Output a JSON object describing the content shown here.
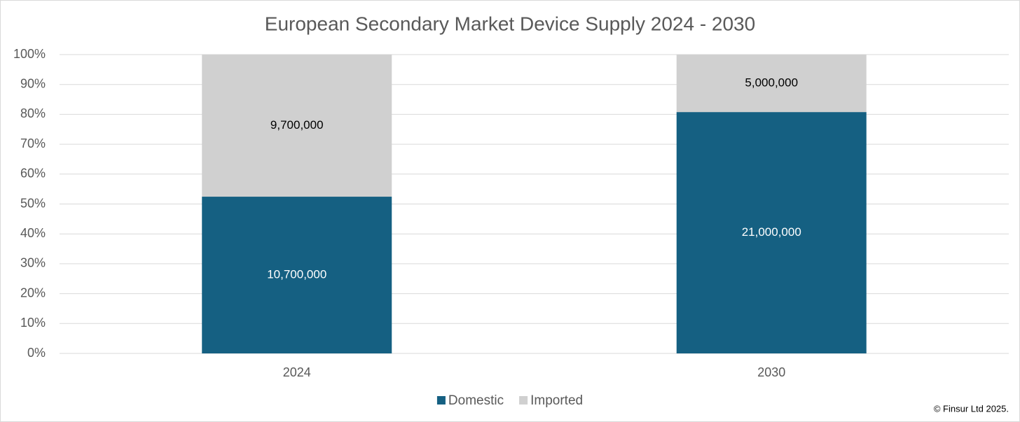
{
  "chart_data": {
    "type": "bar",
    "stacking": "percent",
    "title": "European Secondary Market Device Supply 2024 - 2030",
    "categories": [
      "2024",
      "2030"
    ],
    "series": [
      {
        "name": "Domestic",
        "color": "#156082",
        "label_color": "#ffffff",
        "values": [
          10700000,
          21000000
        ],
        "value_labels": [
          "10,700,000",
          "21,000,000"
        ]
      },
      {
        "name": "Imported",
        "color": "#d0d0d0",
        "label_color": "#000000",
        "values": [
          9700000,
          5000000
        ],
        "value_labels": [
          "9,700,000",
          "5,000,000"
        ]
      }
    ],
    "ylim": [
      0,
      100
    ],
    "yticks": [
      {
        "value": 0,
        "label": "0%"
      },
      {
        "value": 10,
        "label": "10%"
      },
      {
        "value": 20,
        "label": "20%"
      },
      {
        "value": 30,
        "label": "30%"
      },
      {
        "value": 40,
        "label": "40%"
      },
      {
        "value": 50,
        "label": "50%"
      },
      {
        "value": 60,
        "label": "60%"
      },
      {
        "value": 70,
        "label": "70%"
      },
      {
        "value": 80,
        "label": "80%"
      },
      {
        "value": 90,
        "label": "90%"
      },
      {
        "value": 100,
        "label": "100%"
      }
    ],
    "grid": true,
    "legend": "bottom",
    "footnote": "© Finsur Ltd 2025."
  }
}
